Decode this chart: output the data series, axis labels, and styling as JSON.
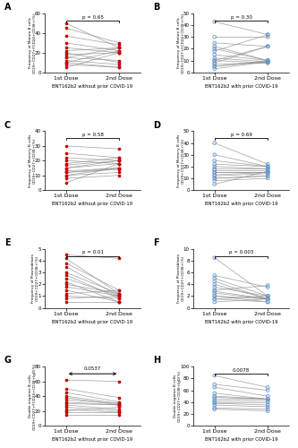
{
  "panels": [
    {
      "label": "A",
      "title": "BNT162b2 without prior COVID-19",
      "ylabel": "Frequency of Mature B cells\nCD19+CD27+FCD24+CD38+(%)",
      "ylim": [
        0,
        60
      ],
      "yticks": [
        0,
        20,
        40,
        60
      ],
      "pval": "p = 0.65",
      "pval_style": "bracket",
      "color": "#cc0000",
      "open_circles": false,
      "paired_data": [
        [
          50,
          25
        ],
        [
          45,
          30
        ],
        [
          37,
          28
        ],
        [
          30,
          22
        ],
        [
          25,
          20
        ],
        [
          22,
          25
        ],
        [
          20,
          10
        ],
        [
          18,
          20
        ],
        [
          15,
          25
        ],
        [
          15,
          12
        ],
        [
          12,
          8
        ],
        [
          10,
          22
        ],
        [
          10,
          5
        ],
        [
          8,
          5
        ],
        [
          5,
          20
        ]
      ]
    },
    {
      "label": "B",
      "title": "BNT162b2 with prior COVID-19",
      "ylabel": "Frequency of Mature B cells\nCD19+CD27+FCD24+CD38+(%)",
      "ylim": [
        0,
        50
      ],
      "yticks": [
        0,
        10,
        20,
        30,
        40,
        50
      ],
      "pval": "p = 0.30",
      "pval_style": "bracket",
      "color": "#6699cc",
      "open_circles": true,
      "paired_data": [
        [
          43,
          32
        ],
        [
          30,
          30
        ],
        [
          25,
          22
        ],
        [
          22,
          10
        ],
        [
          20,
          10
        ],
        [
          18,
          32
        ],
        [
          15,
          10
        ],
        [
          12,
          9
        ],
        [
          10,
          22
        ],
        [
          10,
          8
        ],
        [
          8,
          22
        ],
        [
          7,
          8
        ],
        [
          5,
          10
        ],
        [
          5,
          9
        ],
        [
          3,
          9
        ]
      ]
    },
    {
      "label": "C",
      "title": "BNT162b2 without prior COVID-19",
      "ylabel": "Frequency of Memory B cells\nCD19+CD27+CD38+(%)",
      "ylim": [
        0,
        40
      ],
      "yticks": [
        0,
        10,
        20,
        30,
        40
      ],
      "pval": "p = 0.58",
      "pval_style": "bracket",
      "color": "#cc0000",
      "open_circles": false,
      "paired_data": [
        [
          30,
          28
        ],
        [
          25,
          22
        ],
        [
          22,
          20
        ],
        [
          20,
          18
        ],
        [
          18,
          22
        ],
        [
          17,
          20
        ],
        [
          15,
          20
        ],
        [
          15,
          18
        ],
        [
          13,
          15
        ],
        [
          12,
          15
        ],
        [
          12,
          14
        ],
        [
          10,
          12
        ],
        [
          10,
          15
        ],
        [
          8,
          10
        ],
        [
          5,
          18
        ]
      ]
    },
    {
      "label": "D",
      "title": "BNT162b2 with prior COVID-19",
      "ylabel": "Frequency of Memory B cells\nCD19+CD27+CD38+(%)",
      "ylim": [
        0,
        50
      ],
      "yticks": [
        0,
        10,
        20,
        30,
        40,
        50
      ],
      "pval": "p = 0.69",
      "pval_style": "bracket",
      "color": "#6699cc",
      "open_circles": true,
      "paired_data": [
        [
          40,
          22
        ],
        [
          30,
          20
        ],
        [
          25,
          20
        ],
        [
          22,
          20
        ],
        [
          20,
          18
        ],
        [
          18,
          18
        ],
        [
          17,
          17
        ],
        [
          15,
          15
        ],
        [
          15,
          15
        ],
        [
          13,
          15
        ],
        [
          12,
          14
        ],
        [
          10,
          12
        ],
        [
          10,
          12
        ],
        [
          8,
          10
        ],
        [
          5,
          16
        ]
      ]
    },
    {
      "label": "E",
      "title": "BNT162b2 without prior COVID-19",
      "ylabel": "Frequency of Plasmablasts\nCD19+CD27+CD38+(%)",
      "ylim": [
        0,
        5
      ],
      "yticks": [
        0,
        1,
        2,
        3,
        4,
        5
      ],
      "pval": "p = 0.01",
      "pval_style": "bracket",
      "color": "#cc0000",
      "open_circles": false,
      "paired_data": [
        [
          4.5,
          4.2
        ],
        [
          4.2,
          1.2
        ],
        [
          3.8,
          1.5
        ],
        [
          3.5,
          1.0
        ],
        [
          3.0,
          1.2
        ],
        [
          2.8,
          0.8
        ],
        [
          2.5,
          1.0
        ],
        [
          2.2,
          0.5
        ],
        [
          2.0,
          1.2
        ],
        [
          1.8,
          1.0
        ],
        [
          1.5,
          0.5
        ],
        [
          1.2,
          1.5
        ],
        [
          1.0,
          0.8
        ],
        [
          0.8,
          1.0
        ],
        [
          0.5,
          0.5
        ]
      ]
    },
    {
      "label": "F",
      "title": "BNT162b2 with prior COVID-19",
      "ylabel": "Frequency of Plasmablasts\nCD19+CD27+CD38+(%)",
      "ylim": [
        0,
        10
      ],
      "yticks": [
        0,
        2,
        4,
        6,
        8,
        10
      ],
      "pval": "p = 0.003",
      "pval_style": "bracket",
      "color": "#6699cc",
      "open_circles": true,
      "paired_data": [
        [
          8.5,
          2.0
        ],
        [
          5.5,
          3.5
        ],
        [
          5.0,
          2.0
        ],
        [
          4.5,
          1.5
        ],
        [
          4.0,
          1.5
        ],
        [
          3.5,
          2.0
        ],
        [
          3.0,
          3.8
        ],
        [
          2.8,
          1.5
        ],
        [
          2.5,
          1.5
        ],
        [
          2.0,
          1.5
        ],
        [
          2.0,
          1.0
        ],
        [
          1.5,
          2.0
        ],
        [
          1.5,
          1.0
        ],
        [
          1.0,
          1.5
        ]
      ]
    },
    {
      "label": "G",
      "title": "BNT162b2 without prior COVID-19",
      "ylabel": "Double negative B cells\nCD19+CD27+FCD24+CD38+IgD(%)",
      "ylim": [
        0,
        80
      ],
      "yticks": [
        0,
        20,
        40,
        60,
        80
      ],
      "pval": "0.0537",
      "pval_style": "arrow",
      "color": "#cc0000",
      "open_circles": false,
      "paired_data": [
        [
          62,
          60
        ],
        [
          50,
          38
        ],
        [
          45,
          32
        ],
        [
          40,
          30
        ],
        [
          38,
          28
        ],
        [
          35,
          30
        ],
        [
          32,
          28
        ],
        [
          30,
          28
        ],
        [
          28,
          22
        ],
        [
          25,
          20
        ],
        [
          22,
          18
        ],
        [
          20,
          25
        ],
        [
          18,
          18
        ],
        [
          15,
          15
        ]
      ]
    },
    {
      "label": "H",
      "title": "BNT162b2 with prior COVID-19",
      "ylabel": "Double negative B cells\nCD19+CD27+CD38+IgD(%)",
      "ylim": [
        0,
        100
      ],
      "yticks": [
        0,
        20,
        40,
        60,
        80,
        100
      ],
      "pval": "0.0078",
      "pval_style": "bracket",
      "color": "#6699cc",
      "open_circles": true,
      "paired_data": [
        [
          85,
          65
        ],
        [
          70,
          60
        ],
        [
          65,
          50
        ],
        [
          55,
          45
        ],
        [
          50,
          45
        ],
        [
          48,
          45
        ],
        [
          45,
          45
        ],
        [
          42,
          42
        ],
        [
          40,
          40
        ],
        [
          38,
          35
        ],
        [
          35,
          32
        ],
        [
          30,
          28
        ],
        [
          28,
          25
        ]
      ]
    }
  ]
}
